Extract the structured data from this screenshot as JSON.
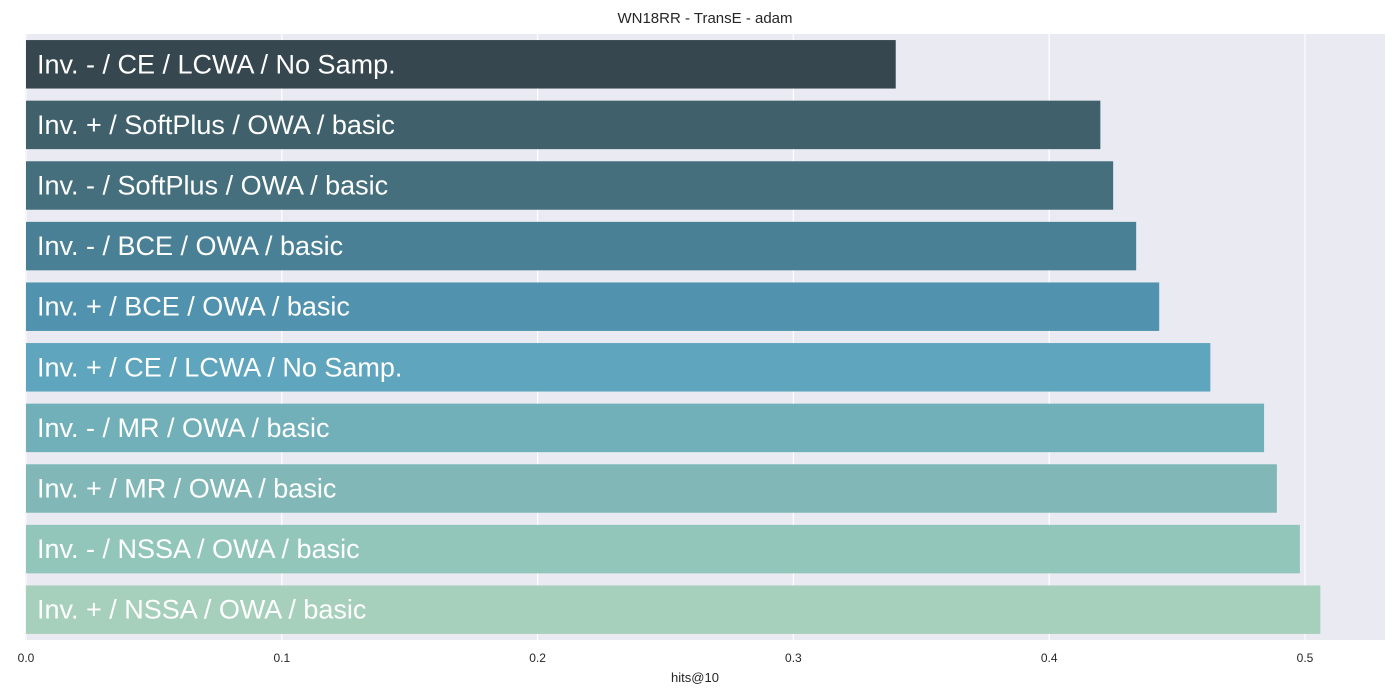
{
  "chart_data": {
    "type": "bar",
    "orientation": "horizontal",
    "title": "WN18RR - TransE - adam",
    "xlabel": "hits@10",
    "ylabel": "",
    "xlim": [
      0,
      0.53
    ],
    "xticks": [
      "0.0",
      "0.1",
      "0.2",
      "0.3",
      "0.4",
      "0.5"
    ],
    "grid": true,
    "categories": [
      "Inv. - / CE / LCWA / No Samp.",
      "Inv. + / SoftPlus / OWA / basic",
      "Inv. - / SoftPlus / OWA / basic",
      "Inv. - / BCE / OWA / basic",
      "Inv. + / BCE / OWA / basic",
      "Inv. + / CE / LCWA / No Samp.",
      "Inv. - / MR / OWA / basic",
      "Inv. + / MR / OWA / basic",
      "Inv. - / NSSA / OWA / basic",
      "Inv. + / NSSA / OWA / basic"
    ],
    "values": [
      0.34,
      0.42,
      0.425,
      0.434,
      0.443,
      0.463,
      0.484,
      0.489,
      0.498,
      0.506
    ],
    "colors": [
      "#37474f",
      "#40606c",
      "#456f7d",
      "#4a8096",
      "#5193ae",
      "#5ea5bd",
      "#71b0b9",
      "#81b8b7",
      "#93c6bb",
      "#a6d0bb"
    ],
    "plot_background": "#eaeaf2",
    "grid_color": "#ffffff"
  }
}
